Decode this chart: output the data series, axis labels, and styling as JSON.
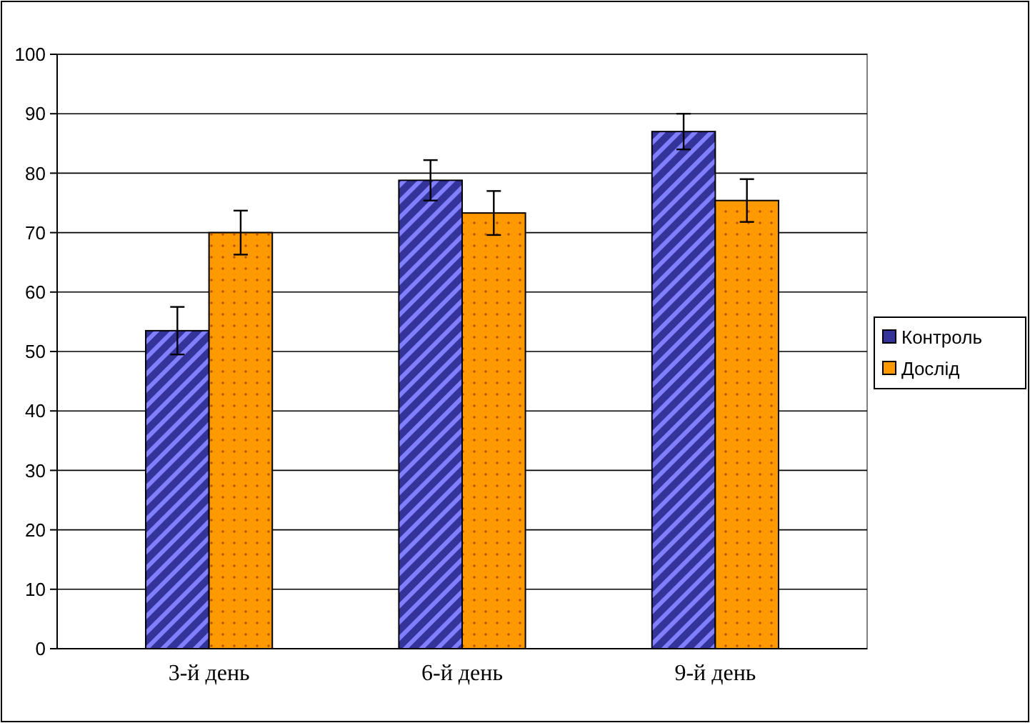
{
  "chart_data": {
    "type": "bar",
    "categories": [
      "3-й день",
      "6-й день",
      "9-й день"
    ],
    "series": [
      {
        "name": "Контроль",
        "color": "#333399",
        "values": [
          53.5,
          78.8,
          87
        ],
        "errors": [
          4,
          3.4,
          3
        ]
      },
      {
        "name": "Дослід",
        "color": "#ff9900",
        "values": [
          70,
          73.3,
          75.4
        ],
        "errors": [
          3.7,
          3.7,
          3.6
        ]
      }
    ],
    "ylim": [
      0,
      100
    ],
    "yticks": [
      0,
      10,
      20,
      30,
      40,
      50,
      60,
      70,
      80,
      90,
      100
    ],
    "grid": "y",
    "legend": "right"
  }
}
